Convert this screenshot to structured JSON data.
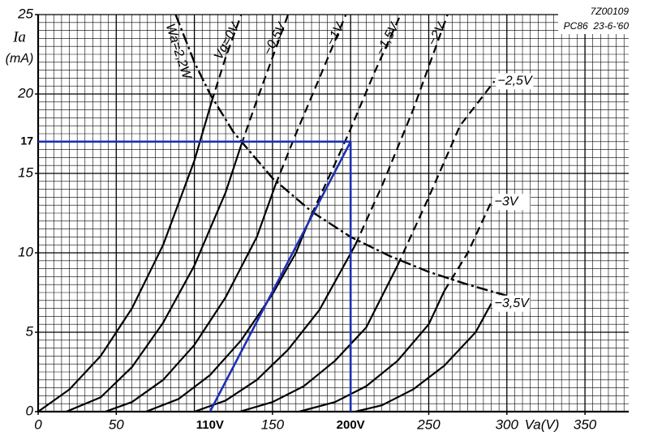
{
  "chart_data": {
    "type": "line",
    "code": "7Z00109",
    "tube": "PC86  23-6-'60",
    "xlabel": "Va(V)",
    "ylabel": "Ia",
    "yunit": "(mA)",
    "xlim": [
      0,
      378
    ],
    "ylim": [
      0,
      25
    ],
    "xticks": [
      0,
      50,
      150,
      250,
      300,
      350
    ],
    "yticks": [
      0,
      5,
      10,
      15,
      20,
      25
    ],
    "grid": {
      "x_step": 5,
      "y_step": 0.5
    },
    "color": "#000000",
    "series": [
      {
        "name": "Vg=0V",
        "x": [
          0,
          20,
          40,
          60,
          80,
          100,
          111,
          120,
          130
        ],
        "values": [
          0,
          1.4,
          3.5,
          6.5,
          10.5,
          15.8,
          19.5,
          22.3,
          25
        ]
      },
      {
        "name": "−0,5V",
        "x": [
          18,
          40,
          60,
          80,
          100,
          120,
          130,
          140,
          150,
          160
        ],
        "values": [
          0,
          0.9,
          2.8,
          5.6,
          9.2,
          13.8,
          16.8,
          19.6,
          22.3,
          25
        ]
      },
      {
        "name": "−1V",
        "x": [
          43,
          60,
          80,
          100,
          120,
          140,
          152,
          165,
          180,
          197
        ],
        "values": [
          0,
          0.6,
          2,
          4.2,
          7.2,
          11,
          14.3,
          17.5,
          21,
          25
        ]
      },
      {
        "name": "−1,5V",
        "x": [
          69,
          90,
          110,
          130,
          150,
          165,
          175,
          190,
          200,
          215,
          232
        ],
        "values": [
          0,
          0.8,
          2.3,
          4.5,
          7.4,
          10,
          12.4,
          15.6,
          17.8,
          21.3,
          25
        ]
      },
      {
        "name": "−2V",
        "x": [
          100,
          120,
          140,
          160,
          180,
          203,
          220,
          240,
          262
        ],
        "values": [
          0,
          0.7,
          2,
          3.9,
          6.4,
          10.5,
          14.2,
          19,
          25
        ]
      },
      {
        "name": "−2,5V",
        "x": [
          129,
          150,
          170,
          190,
          210,
          230,
          250,
          270,
          292
        ],
        "values": [
          0,
          0.6,
          1.6,
          3.2,
          5.3,
          9.2,
          13.5,
          18,
          20.8
        ]
      },
      {
        "name": "−3V",
        "x": [
          167,
          190,
          210,
          230,
          250,
          260,
          275,
          290
        ],
        "values": [
          0,
          0.6,
          1.6,
          3.2,
          5.5,
          7.6,
          10,
          13.2
        ]
      },
      {
        "name": "−3,5V",
        "x": [
          203,
          220,
          240,
          260,
          280,
          290
        ],
        "values": [
          0,
          0.4,
          1.4,
          2.9,
          5,
          6.8
        ]
      }
    ],
    "power_curve": {
      "name": "Wa=2,2W",
      "x": [
        88,
        100,
        110,
        125,
        150,
        175,
        200,
        225,
        250,
        275,
        300
      ],
      "values": [
        25,
        22,
        20,
        17.6,
        14.7,
        12.6,
        11,
        9.8,
        8.8,
        8,
        7.3
      ]
    },
    "load_line": {
      "color": "#1c2fb5",
      "x": [
        110,
        200
      ],
      "values": [
        0,
        17
      ],
      "x_labels": [
        "110V",
        "200V"
      ],
      "y_label": "17"
    }
  }
}
